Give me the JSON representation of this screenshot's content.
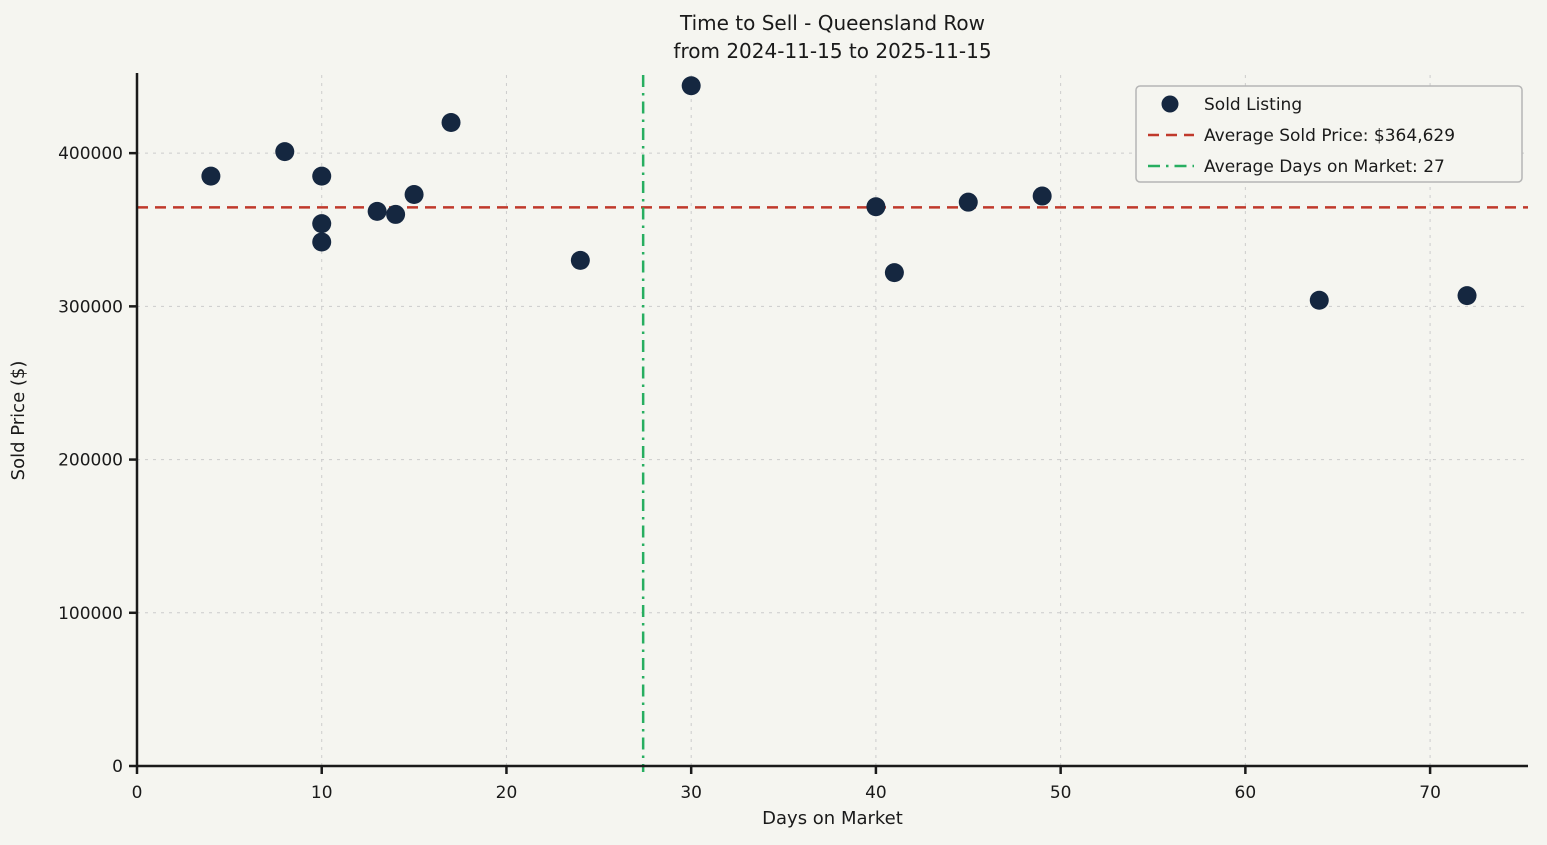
{
  "chart_data": {
    "type": "scatter",
    "title_line1": "Time to Sell - Queensland Row",
    "title_line2": "from 2024-11-15 to 2025-11-15",
    "xlabel": "Days on Market",
    "ylabel": "Sold Price ($)",
    "xlim": [
      0,
      75.3
    ],
    "ylim": [
      0,
      451000
    ],
    "xticks": [
      0,
      10,
      20,
      30,
      40,
      50,
      60,
      70
    ],
    "yticks": [
      0,
      100000,
      200000,
      300000,
      400000
    ],
    "grid": true,
    "points": [
      {
        "x": 4,
        "y": 385000
      },
      {
        "x": 8,
        "y": 401000
      },
      {
        "x": 10,
        "y": 385000
      },
      {
        "x": 10,
        "y": 354000
      },
      {
        "x": 10,
        "y": 342000
      },
      {
        "x": 13,
        "y": 362000
      },
      {
        "x": 14,
        "y": 360000
      },
      {
        "x": 15,
        "y": 373000
      },
      {
        "x": 17,
        "y": 420000
      },
      {
        "x": 24,
        "y": 330000
      },
      {
        "x": 30,
        "y": 444000
      },
      {
        "x": 40,
        "y": 365000
      },
      {
        "x": 41,
        "y": 322000
      },
      {
        "x": 45,
        "y": 368000
      },
      {
        "x": 49,
        "y": 372000
      },
      {
        "x": 64,
        "y": 304000
      },
      {
        "x": 72,
        "y": 307000
      }
    ],
    "avg_sold_price": 364629,
    "avg_days_on_market": 27,
    "avg_days_line_x": 27.4,
    "legend": {
      "position": "upper right",
      "entries": [
        {
          "marker": "dot",
          "label": "Sold Listing"
        },
        {
          "marker": "dashed-line",
          "label": "Average Sold Price: $364,629"
        },
        {
          "marker": "dashdot-line",
          "label": "Average Days on Market: 27"
        }
      ]
    },
    "colors": {
      "point": "#152740",
      "avg_price_line": "#c0392b",
      "avg_days_line": "#27ae60",
      "grid": "#cccccc",
      "spine": "#1a1a1a",
      "background": "#f5f5f0",
      "legend_border": "#b5b5b5"
    }
  }
}
